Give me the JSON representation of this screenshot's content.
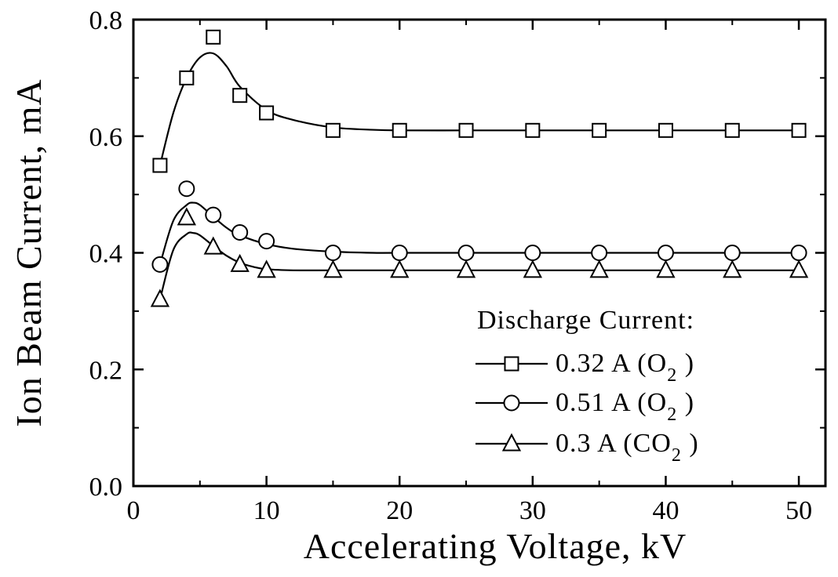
{
  "chart_data": {
    "type": "line",
    "title": "",
    "xlabel": "Accelerating Voltage, kV",
    "ylabel": "Ion Beam Current, mA",
    "xlim": [
      0,
      52
    ],
    "ylim": [
      0,
      0.8
    ],
    "xticks": [
      0,
      10,
      20,
      30,
      40,
      50
    ],
    "xtick_labels": [
      "0",
      "10",
      "20",
      "30",
      "40",
      "50"
    ],
    "yticks": [
      0.0,
      0.2,
      0.4,
      0.6,
      0.8
    ],
    "ytick_labels": [
      "0.0",
      "0.2",
      "0.4",
      "0.6",
      "0.8"
    ],
    "grid": false,
    "legend": {
      "title": "Discharge Current:",
      "placement": "bottom-right"
    },
    "series": [
      {
        "name": "0.32 A (O2)",
        "label_main": "0.32 A  (O",
        "label_sub": "2",
        "label_end": " )",
        "marker": "square",
        "x": [
          2,
          4,
          6,
          8,
          10,
          15,
          20,
          25,
          30,
          35,
          40,
          45,
          50
        ],
        "y": [
          0.55,
          0.7,
          0.77,
          0.67,
          0.64,
          0.61,
          0.61,
          0.61,
          0.61,
          0.61,
          0.61,
          0.61,
          0.61
        ],
        "fit_x": [
          2,
          3,
          4,
          5,
          6,
          7,
          8,
          10,
          12,
          15,
          18,
          20,
          25,
          30,
          40,
          50
        ],
        "fit_y": [
          0.55,
          0.64,
          0.7,
          0.735,
          0.742,
          0.72,
          0.685,
          0.645,
          0.628,
          0.615,
          0.611,
          0.61,
          0.61,
          0.61,
          0.61,
          0.61
        ]
      },
      {
        "name": "0.51 A (O2)",
        "label_main": "0.51 A  (O",
        "label_sub": "2",
        "label_end": " )",
        "marker": "circle",
        "x": [
          2,
          4,
          6,
          8,
          10,
          15,
          20,
          25,
          30,
          35,
          40,
          45,
          50
        ],
        "y": [
          0.38,
          0.51,
          0.465,
          0.435,
          0.42,
          0.4,
          0.4,
          0.4,
          0.4,
          0.4,
          0.4,
          0.4,
          0.4
        ],
        "fit_x": [
          2,
          3,
          4,
          4.5,
          5,
          6,
          7,
          8,
          10,
          12,
          15,
          18,
          20,
          30,
          40,
          50
        ],
        "fit_y": [
          0.38,
          0.455,
          0.482,
          0.486,
          0.482,
          0.462,
          0.443,
          0.43,
          0.415,
          0.407,
          0.402,
          0.4,
          0.4,
          0.4,
          0.4,
          0.4
        ]
      },
      {
        "name": "0.3 A (CO2)",
        "label_main": "0.3   A  (CO",
        "label_sub": "2",
        "label_end": " )",
        "marker": "triangle",
        "x": [
          2,
          4,
          6,
          8,
          10,
          15,
          20,
          25,
          30,
          35,
          40,
          45,
          50
        ],
        "y": [
          0.32,
          0.46,
          0.41,
          0.38,
          0.37,
          0.37,
          0.37,
          0.37,
          0.37,
          0.37,
          0.37,
          0.37,
          0.37
        ],
        "fit_x": [
          2,
          3,
          4,
          4.5,
          5,
          6,
          7,
          8,
          9,
          10,
          12,
          15,
          20,
          30,
          40,
          50
        ],
        "fit_y": [
          0.32,
          0.405,
          0.432,
          0.434,
          0.43,
          0.412,
          0.395,
          0.383,
          0.376,
          0.372,
          0.37,
          0.37,
          0.37,
          0.37,
          0.37,
          0.37
        ]
      }
    ]
  }
}
